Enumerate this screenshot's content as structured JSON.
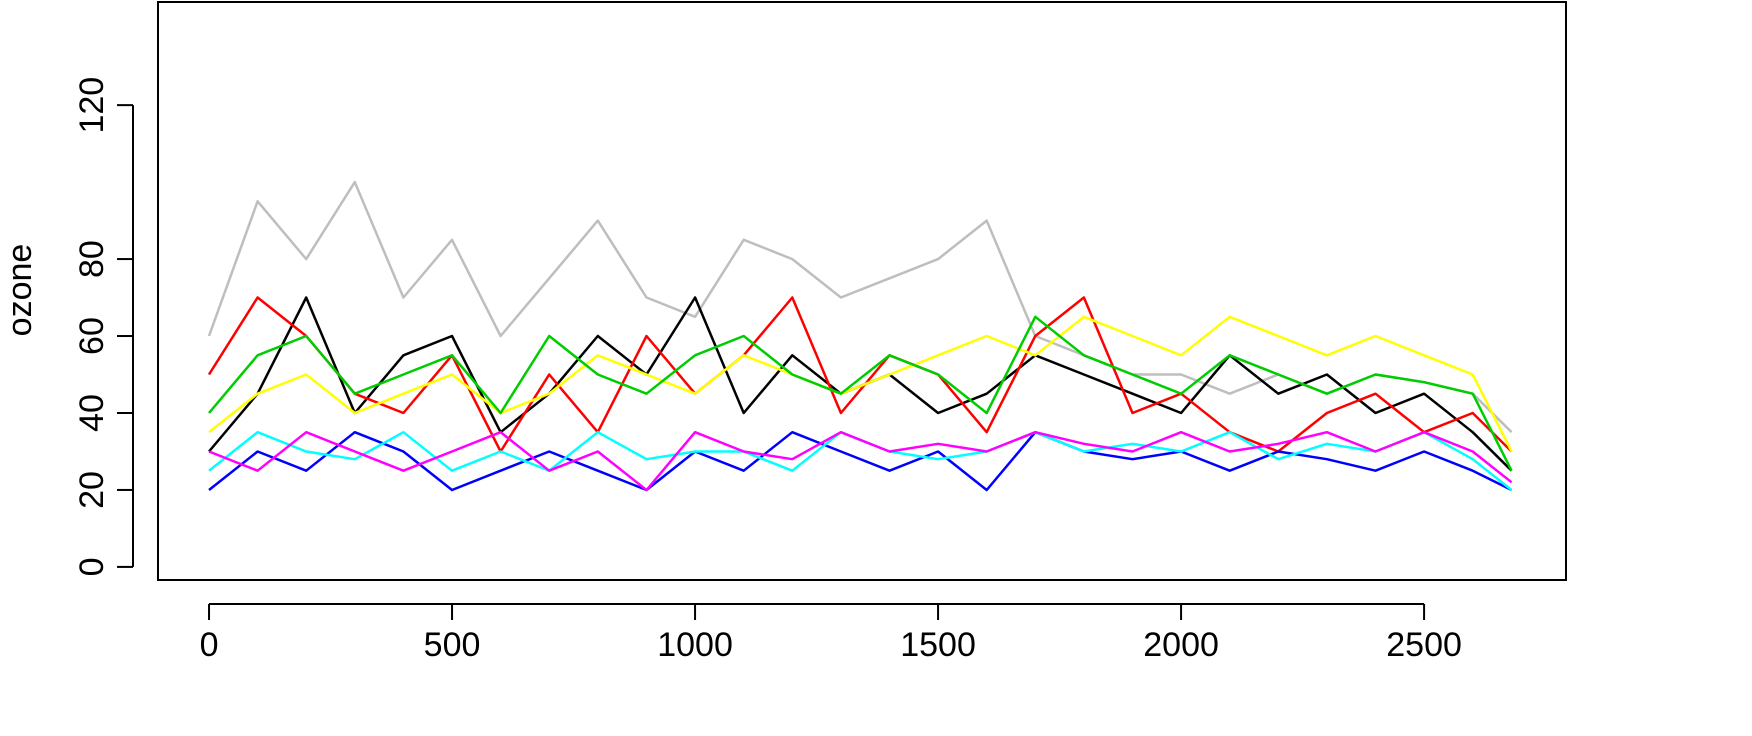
{
  "chart_data": {
    "type": "line",
    "y_label": "ozone",
    "x": [
      0,
      100,
      200,
      300,
      400,
      500,
      600,
      700,
      800,
      900,
      1000,
      1100,
      1200,
      1300,
      1400,
      1500,
      1600,
      1700,
      1800,
      1900,
      2000,
      2100,
      2200,
      2300,
      2400,
      2500,
      2600,
      2680
    ],
    "series": [
      {
        "color": "#bebebe",
        "values": [
          60,
          95,
          80,
          100,
          70,
          85,
          60,
          75,
          90,
          70,
          65,
          85,
          80,
          70,
          75,
          80,
          90,
          60,
          55,
          50,
          50,
          45,
          50,
          45,
          50,
          48,
          45,
          35
        ]
      },
      {
        "color": "#000000",
        "values": [
          30,
          45,
          70,
          40,
          55,
          60,
          35,
          45,
          60,
          50,
          70,
          40,
          55,
          45,
          50,
          40,
          45,
          55,
          50,
          45,
          40,
          55,
          45,
          50,
          40,
          45,
          35,
          25
        ]
      },
      {
        "color": "#ff0000",
        "values": [
          50,
          70,
          60,
          45,
          40,
          55,
          30,
          50,
          35,
          60,
          45,
          55,
          70,
          40,
          55,
          50,
          35,
          60,
          70,
          40,
          45,
          35,
          30,
          40,
          45,
          35,
          40,
          30
        ]
      },
      {
        "color": "#0000ff",
        "values": [
          20,
          30,
          25,
          35,
          30,
          20,
          25,
          30,
          25,
          20,
          30,
          25,
          35,
          30,
          25,
          30,
          20,
          35,
          30,
          28,
          30,
          25,
          30,
          28,
          25,
          30,
          25,
          20
        ]
      },
      {
        "color": "#00ffff",
        "values": [
          25,
          35,
          30,
          28,
          35,
          25,
          30,
          25,
          35,
          28,
          30,
          30,
          25,
          35,
          30,
          28,
          30,
          35,
          30,
          32,
          30,
          35,
          28,
          32,
          30,
          35,
          28,
          20
        ]
      },
      {
        "color": "#ff00ff",
        "values": [
          30,
          25,
          35,
          30,
          25,
          30,
          35,
          25,
          30,
          20,
          35,
          30,
          28,
          35,
          30,
          32,
          30,
          35,
          32,
          30,
          35,
          30,
          32,
          35,
          30,
          35,
          30,
          22
        ]
      },
      {
        "color": "#ffff00",
        "values": [
          35,
          45,
          50,
          40,
          45,
          50,
          40,
          45,
          55,
          50,
          45,
          55,
          50,
          45,
          50,
          55,
          60,
          55,
          65,
          60,
          55,
          65,
          60,
          55,
          60,
          55,
          50,
          30
        ]
      },
      {
        "color": "#00cd00",
        "values": [
          40,
          55,
          60,
          45,
          50,
          55,
          40,
          60,
          50,
          45,
          55,
          60,
          50,
          45,
          55,
          50,
          40,
          65,
          55,
          50,
          45,
          55,
          50,
          45,
          50,
          48,
          45,
          25
        ]
      }
    ],
    "xlim": [
      -105,
      2792
    ],
    "ylim": [
      -3.4,
      146.8
    ],
    "xticks": [
      0,
      500,
      1000,
      1500,
      2000,
      2500
    ],
    "yticks": [
      0,
      20,
      40,
      60,
      80,
      120
    ]
  }
}
